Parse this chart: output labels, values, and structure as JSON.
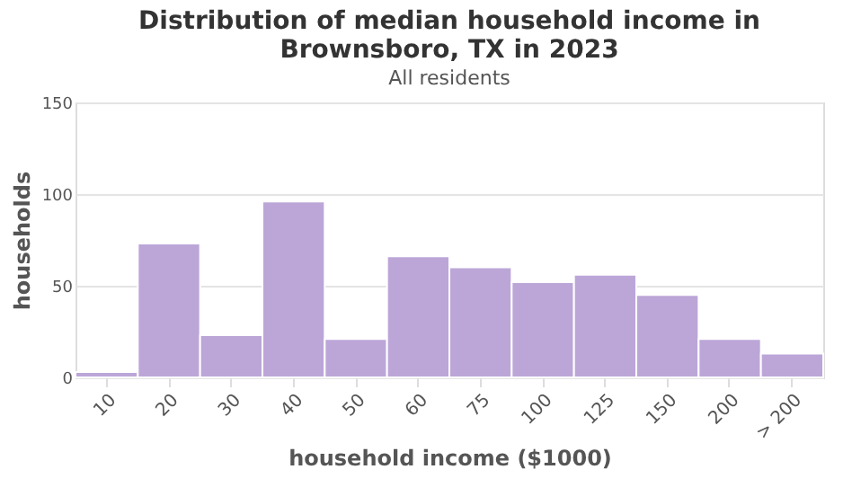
{
  "chart_data": {
    "type": "bar",
    "title": "Distribution of median household income in Brownsboro, TX in 2023",
    "subtitle": "All residents",
    "xlabel": "household income ($1000)",
    "ylabel": "households",
    "categories": [
      "10",
      "20",
      "30",
      "40",
      "50",
      "60",
      "75",
      "100",
      "125",
      "150",
      "200",
      "> 200"
    ],
    "values": [
      3,
      73,
      23,
      96,
      21,
      66,
      60,
      52,
      56,
      45,
      21,
      13
    ],
    "color": "#bca6d8",
    "ylim": [
      0,
      150
    ],
    "yticks": [
      0,
      50,
      100,
      150
    ],
    "grid": "y"
  }
}
